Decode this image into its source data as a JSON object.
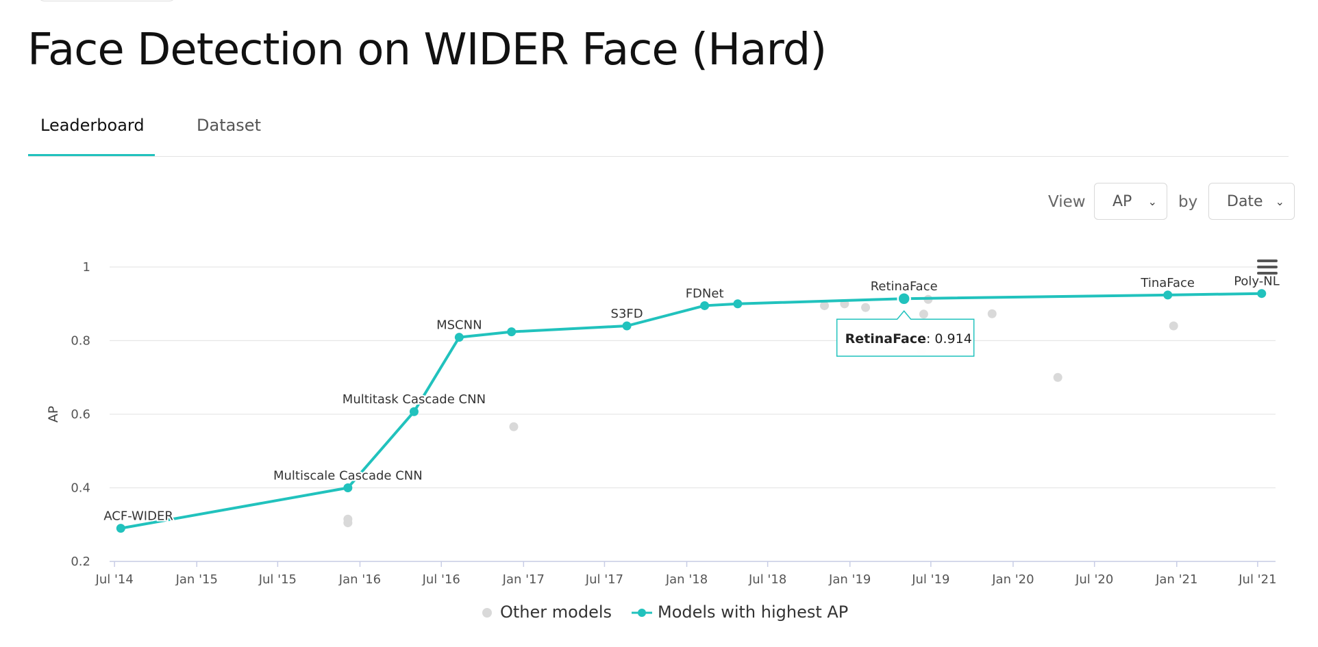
{
  "page": {
    "title": "Face Detection on WIDER Face (Hard)"
  },
  "tabs": [
    {
      "label": "Leaderboard",
      "active": true
    },
    {
      "label": "Dataset",
      "active": false
    }
  ],
  "controls": {
    "view_label": "View",
    "view_value": "AP",
    "by_label": "by",
    "by_value": "Date"
  },
  "legend": {
    "other": "Other models",
    "best": "Models with highest AP"
  },
  "tooltip": {
    "model": "RetinaFace",
    "value": "0.914"
  },
  "colors": {
    "accent": "#21c2bd",
    "other_points": "#d9d9d9",
    "grid": "#e6e6e6"
  },
  "chart_data": {
    "type": "line",
    "xlabel": "",
    "ylabel": "AP",
    "ylim": [
      0.2,
      1.0
    ],
    "yticks": [
      "0.2",
      "0.4",
      "0.6",
      "0.8",
      "1"
    ],
    "xlim": [
      "2014-06-20",
      "2021-08-10"
    ],
    "xticks": [
      "Jul '14",
      "Jan '15",
      "Jul '15",
      "Jan '16",
      "Jul '16",
      "Jan '17",
      "Jul '17",
      "Jan '18",
      "Jul '18",
      "Jan '19",
      "Jul '19",
      "Jan '20",
      "Jul '20",
      "Jan '21",
      "Jul '21"
    ],
    "xtick_dates": [
      "2014-07-01",
      "2015-01-01",
      "2015-07-01",
      "2016-01-01",
      "2016-07-01",
      "2017-01-01",
      "2017-07-01",
      "2018-01-01",
      "2018-07-01",
      "2019-01-01",
      "2019-07-01",
      "2020-01-01",
      "2020-07-01",
      "2021-01-01",
      "2021-07-01"
    ],
    "grid": true,
    "legend_position": "bottom",
    "series": [
      {
        "name": "Models with highest AP",
        "points": [
          {
            "date": "2014-07-15",
            "value": 0.29,
            "label": "ACF-WIDER"
          },
          {
            "date": "2015-12-05",
            "value": 0.4,
            "label": "Multiscale Cascade CNN"
          },
          {
            "date": "2016-05-01",
            "value": 0.607,
            "label": "Multitask Cascade CNN"
          },
          {
            "date": "2016-08-10",
            "value": 0.809,
            "label": "MSCNN"
          },
          {
            "date": "2016-12-05",
            "value": 0.824,
            "label": ""
          },
          {
            "date": "2017-08-20",
            "value": 0.84,
            "label": "S3FD"
          },
          {
            "date": "2018-02-10",
            "value": 0.895,
            "label": "FDNet"
          },
          {
            "date": "2018-04-25",
            "value": 0.9,
            "label": ""
          },
          {
            "date": "2019-05-02",
            "value": 0.914,
            "label": "RetinaFace"
          },
          {
            "date": "2020-12-12",
            "value": 0.924,
            "label": "TinaFace"
          },
          {
            "date": "2021-07-10",
            "value": 0.928,
            "label": "Poly-NL"
          }
        ]
      },
      {
        "name": "Other models",
        "points": [
          {
            "date": "2015-12-05",
            "value": 0.305
          },
          {
            "date": "2015-12-05",
            "value": 0.315
          },
          {
            "date": "2016-12-10",
            "value": 0.566
          },
          {
            "date": "2018-11-05",
            "value": 0.895
          },
          {
            "date": "2018-12-20",
            "value": 0.9
          },
          {
            "date": "2019-02-05",
            "value": 0.89
          },
          {
            "date": "2019-06-10",
            "value": 0.773
          },
          {
            "date": "2019-06-15",
            "value": 0.872
          },
          {
            "date": "2019-06-25",
            "value": 0.912
          },
          {
            "date": "2019-11-15",
            "value": 0.873
          },
          {
            "date": "2020-04-10",
            "value": 0.7
          },
          {
            "date": "2020-12-25",
            "value": 0.84
          }
        ]
      }
    ]
  }
}
